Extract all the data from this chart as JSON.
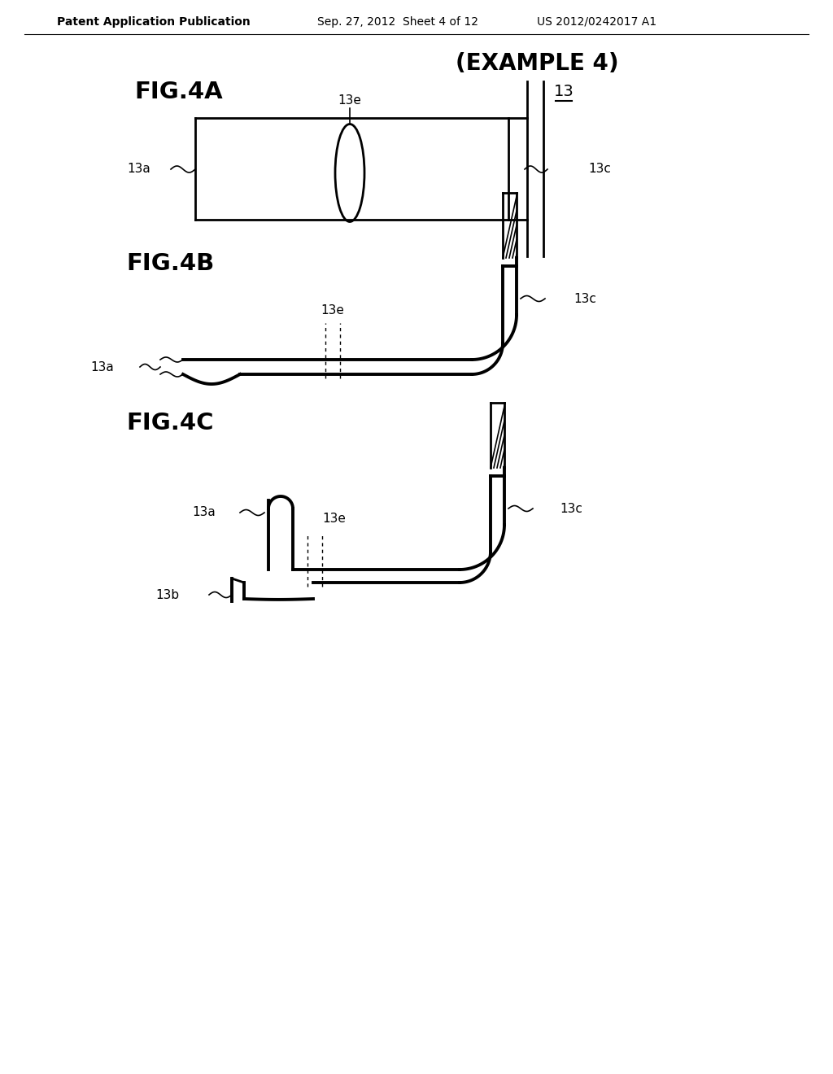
{
  "background_color": "#ffffff",
  "header_left": "Patent Application Publication",
  "header_center": "Sep. 27, 2012  Sheet 4 of 12",
  "header_right": "US 2012/0242017 A1",
  "example_label": "(EXAMPLE 4)",
  "fig4a_label": "FIG.4A",
  "fig4b_label": "FIG.4B",
  "fig4c_label": "FIG.4C",
  "label_13": "13",
  "label_13a_4a": "13a",
  "label_13c_4a": "13c",
  "label_13e_4a": "13e",
  "label_13a_4b": "13a",
  "label_13c_4b": "13c",
  "label_13e_4b": "13e",
  "label_13a_4c": "13a",
  "label_13b_4c": "13b",
  "label_13c_4c": "13c",
  "label_13e_4c": "13e",
  "line_color": "#000000"
}
